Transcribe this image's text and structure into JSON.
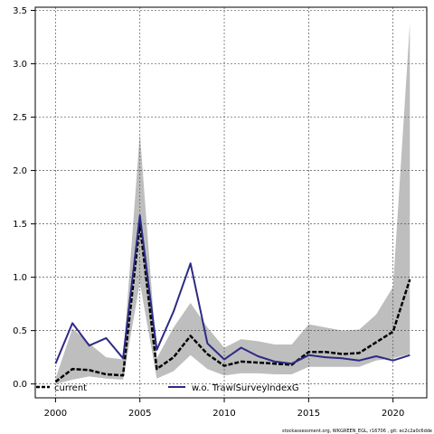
{
  "chart_data": {
    "type": "line",
    "title": "",
    "xlabel": "",
    "ylabel": "",
    "xlim": [
      1998.8,
      2022.0
    ],
    "ylim": [
      -0.13,
      3.53
    ],
    "xticks": [
      2000,
      2005,
      2010,
      2015,
      2020
    ],
    "yticks": [
      0.0,
      0.5,
      1.0,
      1.5,
      2.0,
      2.5,
      3.0,
      3.5
    ],
    "ytick_labels": [
      "0.0",
      "0.5",
      "1.0",
      "1.5",
      "2.0",
      "2.5",
      "3.0",
      "3.5"
    ],
    "grid": true,
    "legend_position": "bottom",
    "x": [
      2000,
      2001,
      2002,
      2003,
      2004,
      2005,
      2006,
      2007,
      2008,
      2009,
      2010,
      2011,
      2012,
      2013,
      2014,
      2015,
      2016,
      2017,
      2018,
      2019,
      2020,
      2021
    ],
    "band": {
      "lower": [
        0.0,
        0.04,
        0.07,
        0.05,
        0.04,
        0.95,
        0.05,
        0.12,
        0.27,
        0.14,
        0.08,
        0.1,
        0.1,
        0.09,
        0.09,
        0.16,
        0.16,
        0.16,
        0.16,
        0.22,
        0.24,
        0.28
      ],
      "upper": [
        0.05,
        0.52,
        0.38,
        0.25,
        0.23,
        2.35,
        0.24,
        0.53,
        0.76,
        0.53,
        0.34,
        0.42,
        0.4,
        0.37,
        0.37,
        0.56,
        0.53,
        0.5,
        0.51,
        0.65,
        0.91,
        3.38
      ],
      "color": "#bebebe"
    },
    "series": [
      {
        "name": "current",
        "color": "#000000",
        "dashed": true,
        "values": [
          0.02,
          0.14,
          0.13,
          0.09,
          0.08,
          1.5,
          0.14,
          0.25,
          0.45,
          0.28,
          0.17,
          0.21,
          0.2,
          0.19,
          0.18,
          0.3,
          0.3,
          0.28,
          0.29,
          0.39,
          0.49,
          0.98
        ]
      },
      {
        "name": "w.o. TrawlSurveyIndexG",
        "color": "#2d2a85",
        "dashed": false,
        "values": [
          0.19,
          0.57,
          0.36,
          0.43,
          0.24,
          1.58,
          0.32,
          0.68,
          1.13,
          0.38,
          0.23,
          0.34,
          0.26,
          0.21,
          0.19,
          0.27,
          0.25,
          0.24,
          0.22,
          0.26,
          0.22,
          0.27
        ]
      }
    ]
  },
  "footer_text": "stockassessment.org, WKGREEN_EGL, r16706 , git: ec2c2a0c6dde"
}
